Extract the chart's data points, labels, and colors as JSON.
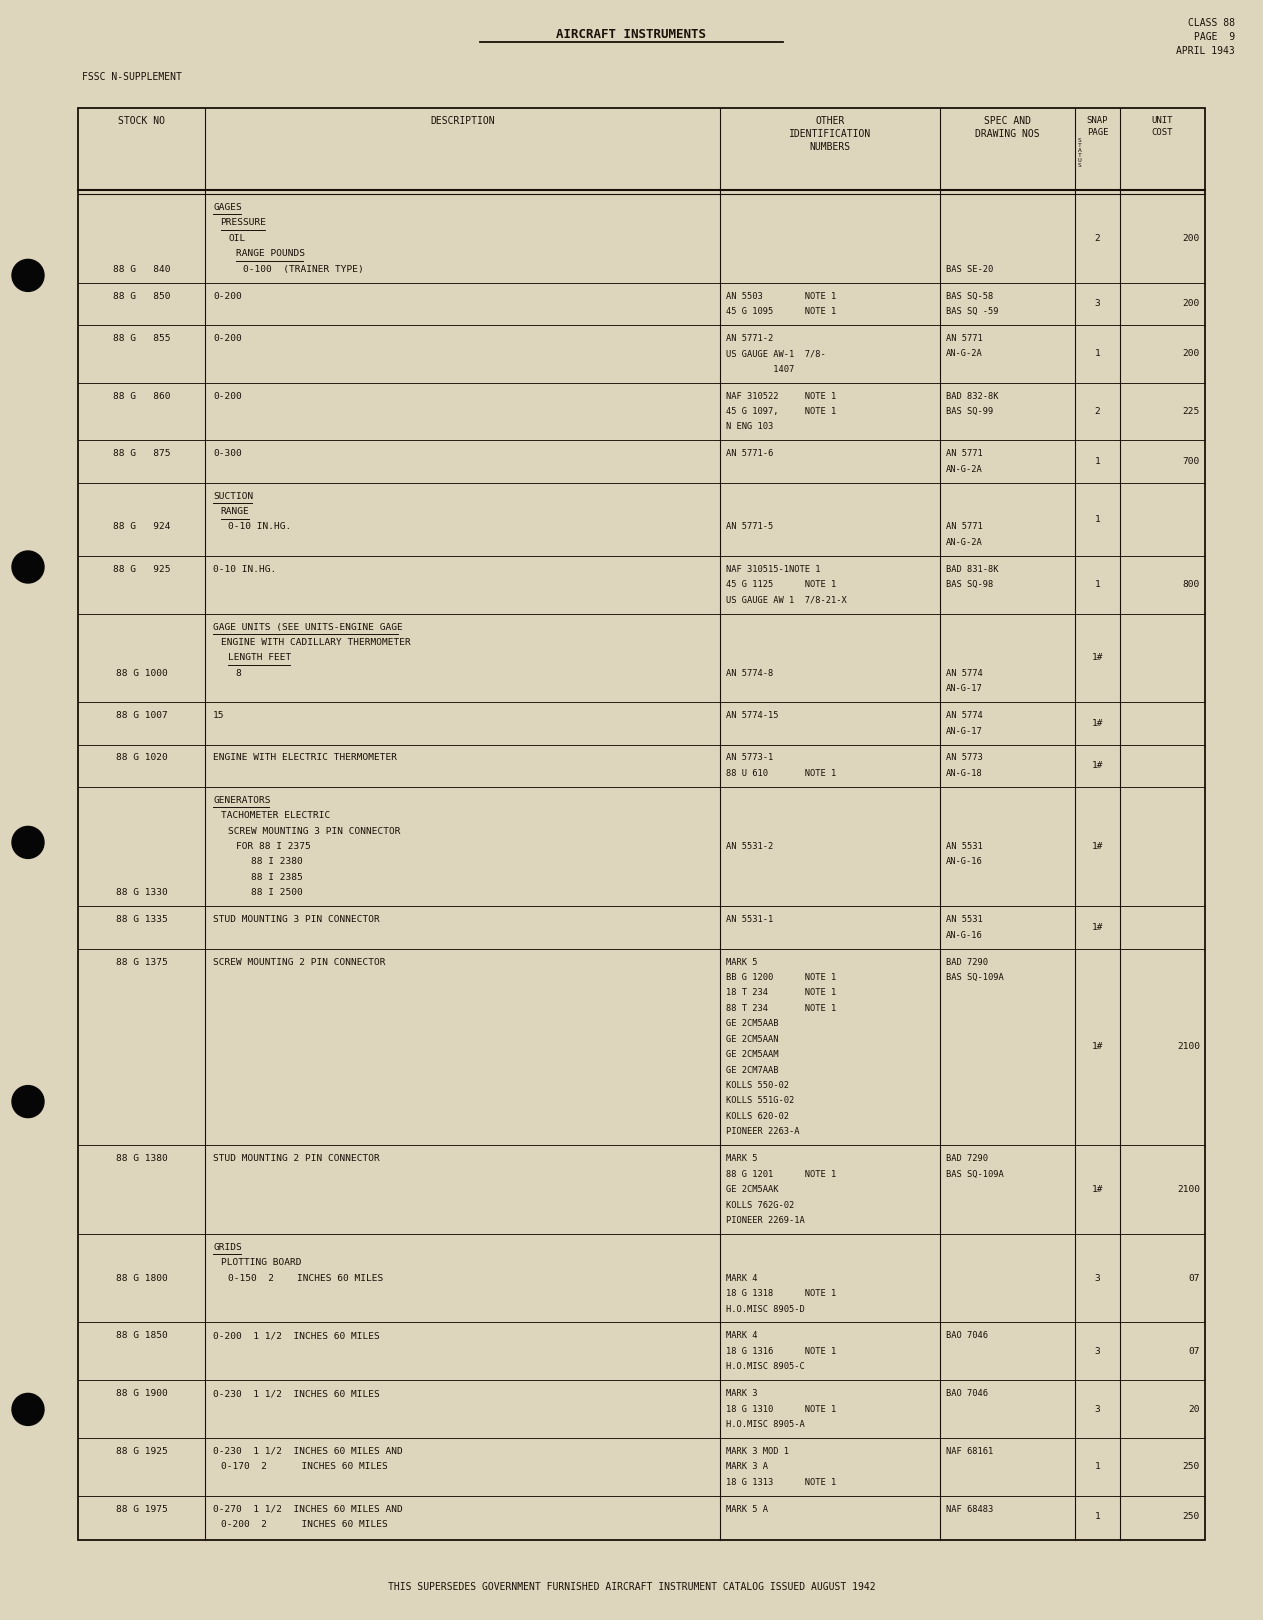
{
  "bg_color": "#ddd5bc",
  "page_title": "AIRCRAFT INSTRUMENTS",
  "class_info": "CLASS 88\nPAGE  9\nAPRIL 1943",
  "fssc_label": "FSSC N-SUPPLEMENT",
  "footer_text": "THIS SUPERSEDES GOVERNMENT FURNISHED AIRCRAFT INSTRUMENT CATALOG ISSUED AUGUST 1942",
  "text_color": "#1a1008",
  "line_color": "#1a1008",
  "rows": [
    {
      "stock_no": "88 G   840",
      "desc_lines": [
        "GAGES",
        "  PRESSURE",
        "    OIL",
        "      RANGE POUNDS",
        "        0-100  (TRAINER TYPE)"
      ],
      "underline_rows": [
        0,
        1,
        3
      ],
      "other_id_lines": [
        "",
        "",
        "",
        "",
        ""
      ],
      "spec_lines": [
        "",
        "",
        "",
        "",
        "BAS SE-20"
      ],
      "snap": "2",
      "cost": "200",
      "stock_at_line": 4
    },
    {
      "stock_no": "88 G   850",
      "desc_lines": [
        "0-200"
      ],
      "underline_rows": [],
      "other_id_lines": [
        "AN 5503        NOTE 1",
        "45 G 1095      NOTE 1"
      ],
      "spec_lines": [
        "BAS SQ-58",
        "BAS SQ -59"
      ],
      "snap": "3",
      "cost": "200",
      "stock_at_line": 0
    },
    {
      "stock_no": "88 G   855",
      "desc_lines": [
        "0-200"
      ],
      "underline_rows": [],
      "other_id_lines": [
        "AN 5771-2",
        "US GAUGE AW-1  7/8-",
        "         1407"
      ],
      "spec_lines": [
        "AN 5771",
        "AN-G-2A"
      ],
      "snap": "1",
      "cost": "200",
      "stock_at_line": 0
    },
    {
      "stock_no": "88 G   860",
      "desc_lines": [
        "0-200"
      ],
      "underline_rows": [],
      "other_id_lines": [
        "NAF 310522     NOTE 1",
        "45 G 1097,     NOTE 1",
        "N ENG 103"
      ],
      "spec_lines": [
        "BAD 832-8K",
        "BAS SQ-99"
      ],
      "snap": "2",
      "cost": "225",
      "stock_at_line": 0
    },
    {
      "stock_no": "88 G   875",
      "desc_lines": [
        "0-300"
      ],
      "underline_rows": [],
      "other_id_lines": [
        "AN 5771-6"
      ],
      "spec_lines": [
        "AN 5771",
        "AN-G-2A"
      ],
      "snap": "1",
      "cost": "700",
      "stock_at_line": 0
    },
    {
      "stock_no": "88 G   924",
      "desc_lines": [
        "SUCTION",
        "  RANGE",
        "    0-10 IN.HG."
      ],
      "underline_rows": [
        0,
        1
      ],
      "other_id_lines": [
        "",
        "",
        "AN 5771-5"
      ],
      "spec_lines": [
        "",
        "",
        "AN 5771",
        "AN-G-2A"
      ],
      "snap": "1",
      "cost": "",
      "stock_at_line": 2
    },
    {
      "stock_no": "88 G   925",
      "desc_lines": [
        "0-10 IN.HG."
      ],
      "underline_rows": [],
      "other_id_lines": [
        "NAF 310515-1NOTE 1",
        "45 G 1125      NOTE 1",
        "US GAUGE AW 1  7/8-21-X"
      ],
      "spec_lines": [
        "BAD 831-8K",
        "BAS SQ-98"
      ],
      "snap": "1",
      "cost": "800",
      "stock_at_line": 0
    },
    {
      "stock_no": "88 G 1000",
      "desc_lines": [
        "GAGE UNITS (SEE UNITS-ENGINE GAGE",
        "  ENGINE WITH CADILLARY THERMOMETER",
        "    LENGTH FEET",
        "      8"
      ],
      "underline_rows": [
        0,
        2
      ],
      "other_id_lines": [
        "",
        "",
        "",
        "AN 5774-8"
      ],
      "spec_lines": [
        "",
        "",
        "",
        "AN 5774",
        "AN-G-17"
      ],
      "snap": "1#",
      "cost": "",
      "stock_at_line": 3
    },
    {
      "stock_no": "88 G 1007",
      "desc_lines": [
        "15"
      ],
      "underline_rows": [],
      "other_id_lines": [
        "AN 5774-15"
      ],
      "spec_lines": [
        "AN 5774",
        "AN-G-17"
      ],
      "snap": "1#",
      "cost": "",
      "stock_at_line": 0
    },
    {
      "stock_no": "88 G 1020",
      "desc_lines": [
        "ENGINE WITH ELECTRIC THERMOMETER"
      ],
      "underline_rows": [],
      "other_id_lines": [
        "AN 5773-1",
        "88 U 610       NOTE 1"
      ],
      "spec_lines": [
        "AN 5773",
        "AN-G-18"
      ],
      "snap": "1#",
      "cost": "",
      "stock_at_line": 0
    },
    {
      "stock_no": "88 G 1330",
      "desc_lines": [
        "GENERATORS",
        "  TACHOMETER ELECTRIC",
        "    SCREW MOUNTING 3 PIN CONNECTOR",
        "      FOR 88 I 2375",
        "          88 I 2380",
        "          88 I 2385",
        "          88 I 2500"
      ],
      "underline_rows": [
        0
      ],
      "other_id_lines": [
        "",
        "",
        "",
        "AN 5531-2"
      ],
      "spec_lines": [
        "",
        "",
        "",
        "AN 5531",
        "AN-G-16"
      ],
      "snap": "1#",
      "cost": "",
      "stock_at_line": 6
    },
    {
      "stock_no": "88 G 1335",
      "desc_lines": [
        "STUD MOUNTING 3 PIN CONNECTOR"
      ],
      "underline_rows": [],
      "other_id_lines": [
        "AN 5531-1"
      ],
      "spec_lines": [
        "AN 5531",
        "AN-G-16"
      ],
      "snap": "1#",
      "cost": "",
      "stock_at_line": 0
    },
    {
      "stock_no": "88 G 1375",
      "desc_lines": [
        "SCREW MOUNTING 2 PIN CONNECTOR"
      ],
      "underline_rows": [],
      "other_id_lines": [
        "MARK 5",
        "BB G 1200      NOTE 1",
        "18 T 234       NOTE 1",
        "88 T 234       NOTE 1",
        "GE 2CM5AAB",
        "GE 2CM5AAN",
        "GE 2CM5AAM",
        "GE 2CM7AAB",
        "KOLLS 550-02",
        "KOLLS 551G-02",
        "KOLLS 620-02",
        "PIONEER 2263-A"
      ],
      "spec_lines": [
        "BAD 7290",
        "BAS SQ-109A"
      ],
      "snap": "1#",
      "cost": "2100",
      "stock_at_line": 0
    },
    {
      "stock_no": "88 G 1380",
      "desc_lines": [
        "STUD MOUNTING 2 PIN CONNECTOR"
      ],
      "underline_rows": [],
      "other_id_lines": [
        "MARK 5",
        "88 G 1201      NOTE 1",
        "GE 2CM5AAK",
        "KOLLS 762G-02",
        "PIONEER 2269-1A"
      ],
      "spec_lines": [
        "BAD 7290",
        "BAS SQ-109A"
      ],
      "snap": "1#",
      "cost": "2100",
      "stock_at_line": 0
    },
    {
      "stock_no": "88 G 1800",
      "desc_lines": [
        "GRIDS",
        "  PLOTTING BOARD",
        "    0-150  2    INCHES 60 MILES"
      ],
      "underline_rows": [
        0
      ],
      "other_id_lines": [
        "",
        "",
        "MARK 4",
        "18 G 1318      NOTE 1",
        "H.O.MISC 8905-D"
      ],
      "spec_lines": [
        ""
      ],
      "snap": "3",
      "cost": "07",
      "stock_at_line": 2
    },
    {
      "stock_no": "88 G 1850",
      "desc_lines": [
        "0-200  1 1/2  INCHES 60 MILES"
      ],
      "underline_rows": [],
      "other_id_lines": [
        "MARK 4",
        "18 G 1316      NOTE 1",
        "H.O.MISC 8905-C"
      ],
      "spec_lines": [
        "BAO 7046"
      ],
      "snap": "3",
      "cost": "07",
      "stock_at_line": 0
    },
    {
      "stock_no": "88 G 1900",
      "desc_lines": [
        "0-230  1 1/2  INCHES 60 MILES"
      ],
      "underline_rows": [],
      "other_id_lines": [
        "MARK 3",
        "18 G 1310      NOTE 1",
        "H.O.MISC 8905-A"
      ],
      "spec_lines": [
        "BAO 7046"
      ],
      "snap": "3",
      "cost": "20",
      "stock_at_line": 0
    },
    {
      "stock_no": "88 G 1925",
      "desc_lines": [
        "0-230  1 1/2  INCHES 60 MILES AND",
        "  0-170  2      INCHES 60 MILES"
      ],
      "underline_rows": [],
      "other_id_lines": [
        "MARK 3 MOD 1",
        "MARK 3 A",
        "18 G 1313      NOTE 1"
      ],
      "spec_lines": [
        "NAF 68161"
      ],
      "snap": "1",
      "cost": "250",
      "stock_at_line": 0
    },
    {
      "stock_no": "88 G 1975",
      "desc_lines": [
        "0-270  1 1/2  INCHES 60 MILES AND",
        "  0-200  2      INCHES 60 MILES"
      ],
      "underline_rows": [],
      "other_id_lines": [
        "MARK 5 A"
      ],
      "spec_lines": [
        "NAF 68483"
      ],
      "snap": "1",
      "cost": "250",
      "stock_at_line": 0
    }
  ]
}
